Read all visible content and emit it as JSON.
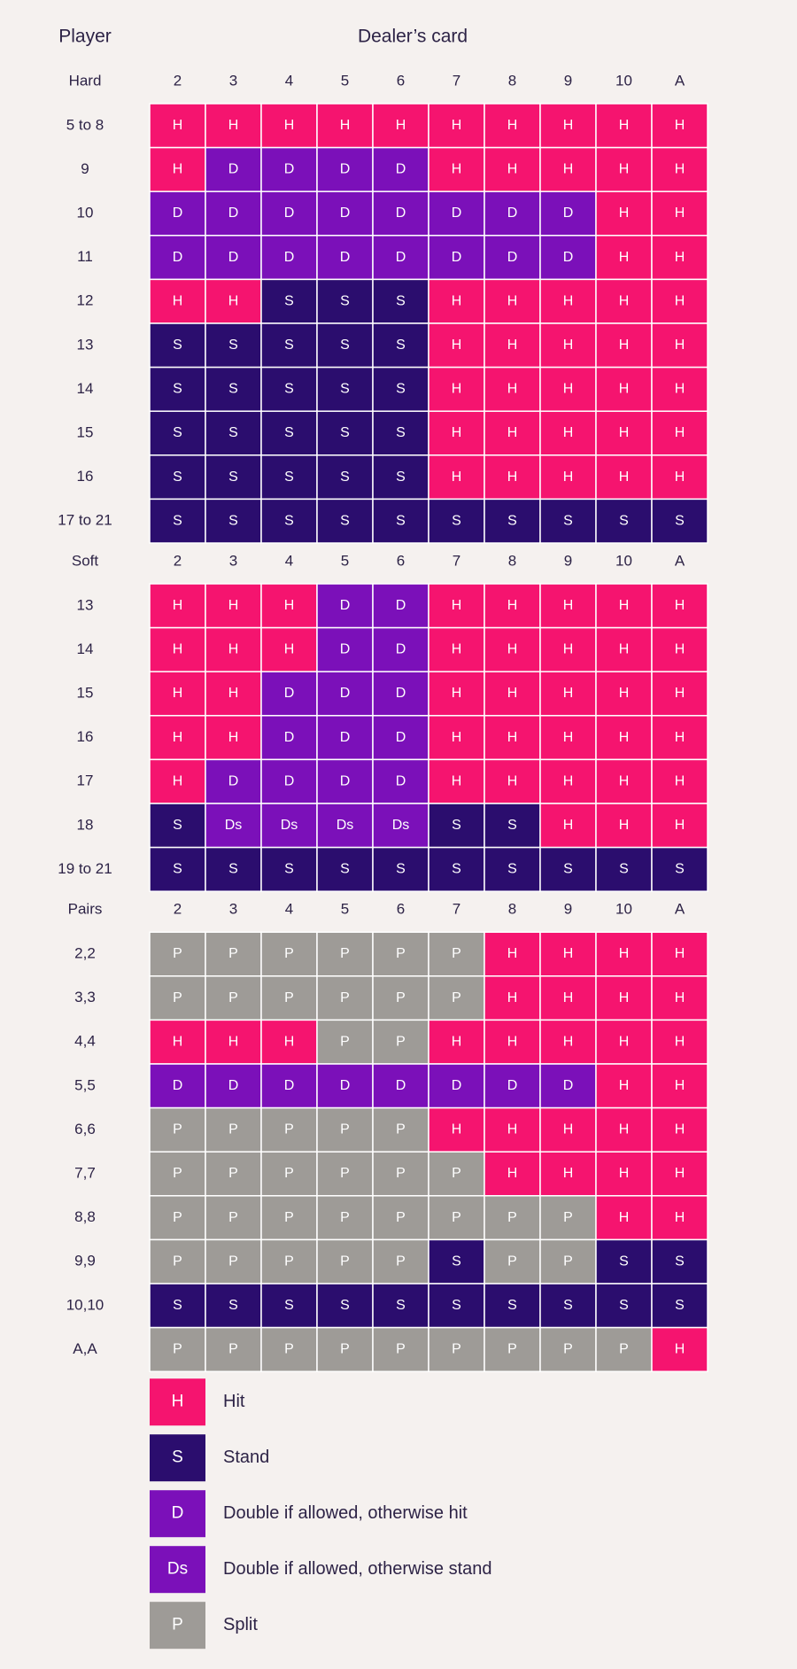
{
  "header": {
    "player": "Player",
    "dealer": "Dealer’s card"
  },
  "sections": [
    {
      "label": "Hard",
      "columns": [
        "2",
        "3",
        "4",
        "5",
        "6",
        "7",
        "8",
        "9",
        "10",
        "A"
      ],
      "rows": [
        {
          "label": "5 to 8",
          "cells": [
            "H",
            "H",
            "H",
            "H",
            "H",
            "H",
            "H",
            "H",
            "H",
            "H"
          ]
        },
        {
          "label": "9",
          "cells": [
            "H",
            "D",
            "D",
            "D",
            "D",
            "H",
            "H",
            "H",
            "H",
            "H"
          ]
        },
        {
          "label": "10",
          "cells": [
            "D",
            "D",
            "D",
            "D",
            "D",
            "D",
            "D",
            "D",
            "H",
            "H"
          ]
        },
        {
          "label": "11",
          "cells": [
            "D",
            "D",
            "D",
            "D",
            "D",
            "D",
            "D",
            "D",
            "H",
            "H"
          ]
        },
        {
          "label": "12",
          "cells": [
            "H",
            "H",
            "S",
            "S",
            "S",
            "H",
            "H",
            "H",
            "H",
            "H"
          ]
        },
        {
          "label": "13",
          "cells": [
            "S",
            "S",
            "S",
            "S",
            "S",
            "H",
            "H",
            "H",
            "H",
            "H"
          ]
        },
        {
          "label": "14",
          "cells": [
            "S",
            "S",
            "S",
            "S",
            "S",
            "H",
            "H",
            "H",
            "H",
            "H"
          ]
        },
        {
          "label": "15",
          "cells": [
            "S",
            "S",
            "S",
            "S",
            "S",
            "H",
            "H",
            "H",
            "H",
            "H"
          ]
        },
        {
          "label": "16",
          "cells": [
            "S",
            "S",
            "S",
            "S",
            "S",
            "H",
            "H",
            "H",
            "H",
            "H"
          ]
        },
        {
          "label": "17 to 21",
          "cells": [
            "S",
            "S",
            "S",
            "S",
            "S",
            "S",
            "S",
            "S",
            "S",
            "S"
          ]
        }
      ]
    },
    {
      "label": "Soft",
      "columns": [
        "2",
        "3",
        "4",
        "5",
        "6",
        "7",
        "8",
        "9",
        "10",
        "A"
      ],
      "rows": [
        {
          "label": "13",
          "cells": [
            "H",
            "H",
            "H",
            "D",
            "D",
            "H",
            "H",
            "H",
            "H",
            "H"
          ]
        },
        {
          "label": "14",
          "cells": [
            "H",
            "H",
            "H",
            "D",
            "D",
            "H",
            "H",
            "H",
            "H",
            "H"
          ]
        },
        {
          "label": "15",
          "cells": [
            "H",
            "H",
            "D",
            "D",
            "D",
            "H",
            "H",
            "H",
            "H",
            "H"
          ]
        },
        {
          "label": "16",
          "cells": [
            "H",
            "H",
            "D",
            "D",
            "D",
            "H",
            "H",
            "H",
            "H",
            "H"
          ]
        },
        {
          "label": "17",
          "cells": [
            "H",
            "D",
            "D",
            "D",
            "D",
            "H",
            "H",
            "H",
            "H",
            "H"
          ]
        },
        {
          "label": "18",
          "cells": [
            "S",
            "Ds",
            "Ds",
            "Ds",
            "Ds",
            "S",
            "S",
            "H",
            "H",
            "H"
          ]
        },
        {
          "label": "19 to 21",
          "cells": [
            "S",
            "S",
            "S",
            "S",
            "S",
            "S",
            "S",
            "S",
            "S",
            "S"
          ]
        }
      ]
    },
    {
      "label": "Pairs",
      "columns": [
        "2",
        "3",
        "4",
        "5",
        "6",
        "7",
        "8",
        "9",
        "10",
        "A"
      ],
      "rows": [
        {
          "label": "2,2",
          "cells": [
            "P",
            "P",
            "P",
            "P",
            "P",
            "P",
            "H",
            "H",
            "H",
            "H"
          ]
        },
        {
          "label": "3,3",
          "cells": [
            "P",
            "P",
            "P",
            "P",
            "P",
            "P",
            "H",
            "H",
            "H",
            "H"
          ]
        },
        {
          "label": "4,4",
          "cells": [
            "H",
            "H",
            "H",
            "P",
            "P",
            "H",
            "H",
            "H",
            "H",
            "H"
          ]
        },
        {
          "label": "5,5",
          "cells": [
            "D",
            "D",
            "D",
            "D",
            "D",
            "D",
            "D",
            "D",
            "H",
            "H"
          ]
        },
        {
          "label": "6,6",
          "cells": [
            "P",
            "P",
            "P",
            "P",
            "P",
            "H",
            "H",
            "H",
            "H",
            "H"
          ]
        },
        {
          "label": "7,7",
          "cells": [
            "P",
            "P",
            "P",
            "P",
            "P",
            "P",
            "H",
            "H",
            "H",
            "H"
          ]
        },
        {
          "label": "8,8",
          "cells": [
            "P",
            "P",
            "P",
            "P",
            "P",
            "P",
            "P",
            "P",
            "H",
            "H"
          ]
        },
        {
          "label": "9,9",
          "cells": [
            "P",
            "P",
            "P",
            "P",
            "P",
            "S",
            "P",
            "P",
            "S",
            "S"
          ]
        },
        {
          "label": "10,10",
          "cells": [
            "S",
            "S",
            "S",
            "S",
            "S",
            "S",
            "S",
            "S",
            "S",
            "S"
          ]
        },
        {
          "label": "A,A",
          "cells": [
            "P",
            "P",
            "P",
            "P",
            "P",
            "P",
            "P",
            "P",
            "P",
            "H"
          ]
        }
      ]
    }
  ],
  "legend": [
    {
      "code": "H",
      "text": "Hit",
      "color": "#f5146f"
    },
    {
      "code": "S",
      "text": "Stand",
      "color": "#2b0d6e"
    },
    {
      "code": "D",
      "text": "Double if allowed, otherwise hit",
      "color": "#7b10b9"
    },
    {
      "code": "Ds",
      "text": "Double if allowed, otherwise stand",
      "color": "#7b10b9"
    },
    {
      "code": "P",
      "text": "Split",
      "color": "#9e9b97"
    }
  ]
}
